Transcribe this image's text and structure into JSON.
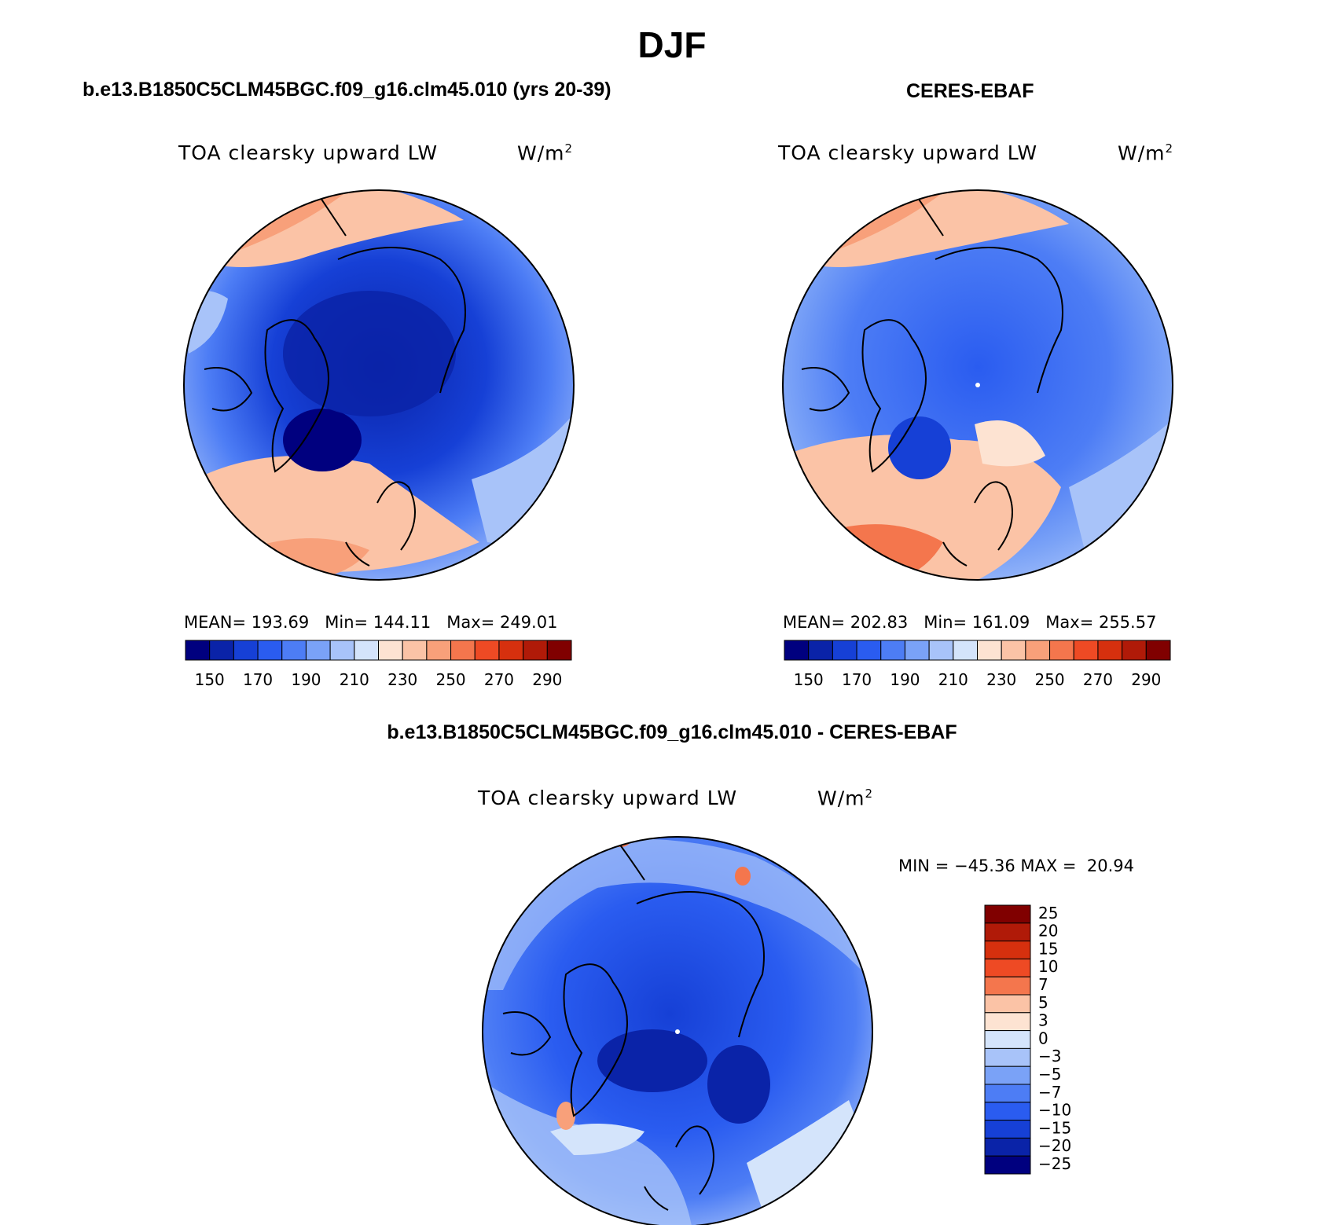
{
  "figure_title": "DJF",
  "panels": {
    "model": {
      "title": "b.e13.B1850C5CLM45BGC.f09_g16.clm45.010 (yrs 20-39)",
      "variable": "TOA clearsky upward LW",
      "units": "W/m",
      "units_sup": "2",
      "stats": "MEAN= 193.69   Min= 144.11   Max= 249.01"
    },
    "obs": {
      "title": "CERES-EBAF",
      "variable": "TOA clearsky upward LW",
      "units": "W/m",
      "units_sup": "2",
      "stats": "MEAN= 202.83   Min= 161.09   Max= 255.57"
    },
    "diff": {
      "title": "b.e13.B1850C5CLM45BGC.f09_g16.clm45.010 - CERES-EBAF",
      "variable": "TOA clearsky upward LW",
      "units": "W/m",
      "units_sup": "2",
      "stats": "MIN = −45.36 MAX =  20.94"
    }
  },
  "colorbar_abs": {
    "colors": [
      "#00007f",
      "#0a23a8",
      "#1640d6",
      "#2a5cf0",
      "#4d7df5",
      "#7aa2f7",
      "#a8c3f9",
      "#d4e4fb",
      "#fde3d2",
      "#fbc3a6",
      "#f8a07a",
      "#f4764d",
      "#ee4a24",
      "#d6300e",
      "#b01a08",
      "#800000"
    ],
    "labels": [
      "150",
      "170",
      "190",
      "210",
      "230",
      "250",
      "270",
      "290"
    ]
  },
  "colorbar_diff": {
    "colors": [
      "#800000",
      "#b01a08",
      "#d6300e",
      "#ee4a24",
      "#f4764d",
      "#fbc3a6",
      "#fde3d2",
      "#d4e4fb",
      "#a8c3f9",
      "#7aa2f7",
      "#4d7df5",
      "#2a5cf0",
      "#1640d6",
      "#0a23a8",
      "#00007f"
    ],
    "labels": [
      "25",
      "20",
      "15",
      "10",
      "7",
      "5",
      "3",
      "0",
      "−3",
      "−5",
      "−7",
      "−10",
      "−15",
      "−20",
      "−25"
    ]
  }
}
